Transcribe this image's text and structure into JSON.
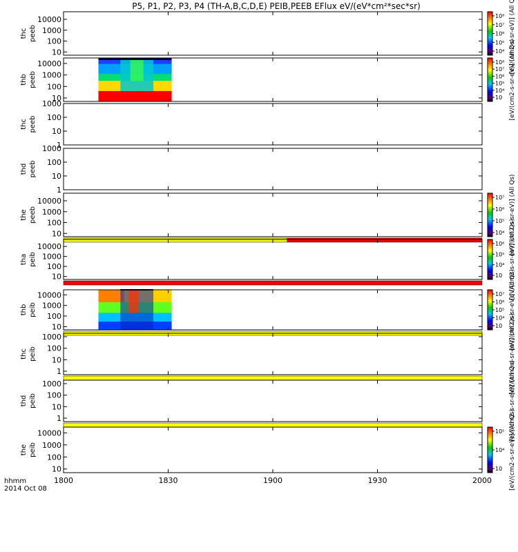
{
  "title": "P5, P1, P2, P3, P4 (TH-A,B,C,D,E) PEIB,PEEB EFlux eV/(eV*cm²*sec*sr)",
  "colors": {
    "red": "#ff0000",
    "yellow": "#ffff00",
    "frame": "#000000"
  },
  "chart_data": {
    "type": "heatmap",
    "x_axis": {
      "range": [
        "18:00",
        "20:00"
      ],
      "ticks": [
        "1800",
        "1830",
        "1900",
        "1930",
        "2000"
      ],
      "label_lines": [
        "hhmm",
        "2014 Oct 08"
      ]
    },
    "panels": [
      {
        "probe": "thc",
        "product": "peeb",
        "y_log": true,
        "y_range": [
          5,
          50000
        ],
        "y_ticks": [
          "10",
          "100",
          "1000",
          "10000"
        ],
        "colorbar": {
          "ticks": [
            "10⁴",
            "10⁵",
            "10⁶",
            "10⁷",
            "10⁸"
          ],
          "label": "[eV/(cm2-s-sr-eV)] (All Qs)"
        },
        "data_coverage": null,
        "bottom_strip": null
      },
      {
        "probe": "thb",
        "product": "peeb",
        "y_log": true,
        "y_range": [
          5,
          30000
        ],
        "y_ticks": [
          "10",
          "100",
          "1000",
          "10000"
        ],
        "colorbar": {
          "ticks": [
            "10⁳",
            "10⁴",
            "10⁵",
            "10⁶",
            "10⁷",
            "10⁸"
          ],
          "label": "[eV/(cm2-s-sr-eV)] (All Qs)"
        },
        "data_coverage": [
          "18:10",
          "18:31"
        ],
        "bottom_strip": null
      },
      {
        "probe": "thc",
        "product": "peeb",
        "y_log": true,
        "y_range": [
          1,
          1000
        ],
        "y_ticks": [
          "1",
          "10",
          "100",
          "1000"
        ],
        "colorbar": null,
        "data_coverage": null,
        "bottom_strip": null
      },
      {
        "probe": "thd",
        "product": "peeb",
        "y_log": true,
        "y_range": [
          1,
          1000
        ],
        "y_ticks": [
          "1",
          "10",
          "100",
          "1000"
        ],
        "colorbar": null,
        "data_coverage": null,
        "bottom_strip": null
      },
      {
        "probe": "the",
        "product": "peeb",
        "y_log": true,
        "y_range": [
          5,
          50000
        ],
        "y_ticks": [
          "10",
          "100",
          "1000",
          "10000"
        ],
        "colorbar": {
          "ticks": [
            "10⁴",
            "10⁵",
            "10⁶",
            "10⁷"
          ],
          "label": "[eV/(cm2-s-sr-eV)] (All Qs)"
        },
        "data_coverage": null,
        "bottom_strip": [
          {
            "from": "18:00",
            "to": "19:04",
            "color": "yellow"
          },
          {
            "from": "19:04",
            "to": "20:00",
            "color": "red"
          }
        ]
      },
      {
        "probe": "tha",
        "product": "peib",
        "y_log": true,
        "y_range": [
          5,
          50000
        ],
        "y_ticks": [
          "10",
          "100",
          "1000",
          "10000"
        ],
        "colorbar": {
          "ticks": [
            "10⁳",
            "10⁴",
            "10⁵",
            "10⁶"
          ],
          "label": "[eV/(cm2-s-sr-eV)] (All Qs)"
        },
        "data_coverage": null,
        "bottom_strip": [
          {
            "from": "18:00",
            "to": "20:00",
            "color": "red"
          }
        ]
      },
      {
        "probe": "thb",
        "product": "peib",
        "y_log": true,
        "y_range": [
          5,
          30000
        ],
        "y_ticks": [
          "10",
          "100",
          "1000",
          "10000"
        ],
        "colorbar": {
          "ticks": [
            "10⁳",
            "10⁴",
            "10⁵",
            "10⁶",
            "10⁷"
          ],
          "label": "[eV/(cm2-s-sr-eV)] (All Qs)"
        },
        "data_coverage": [
          "18:10",
          "18:31"
        ],
        "bottom_strip": [
          {
            "from": "18:00",
            "to": "20:00",
            "color": "yellow"
          }
        ]
      },
      {
        "probe": "thc",
        "product": "peib",
        "y_log": true,
        "y_range": [
          0.5,
          2000
        ],
        "y_ticks": [
          "1",
          "10",
          "100",
          "1000"
        ],
        "colorbar": {
          "ticks": [],
          "label": "[eV/(cm2-s-sr-eV)] (All Qs)"
        },
        "data_coverage": null,
        "bottom_strip": [
          {
            "from": "18:00",
            "to": "20:00",
            "color": "yellow"
          }
        ]
      },
      {
        "probe": "thd",
        "product": "peib",
        "y_log": true,
        "y_range": [
          0.5,
          2000
        ],
        "y_ticks": [
          "1",
          "10",
          "100",
          "1000"
        ],
        "colorbar": {
          "ticks": [],
          "label": "[eV/(cm2-s-sr-eV)] (All Qs)"
        },
        "data_coverage": null,
        "bottom_strip": [
          {
            "from": "18:00",
            "to": "20:00",
            "color": "yellow"
          }
        ]
      },
      {
        "probe": "the",
        "product": "peib",
        "y_log": true,
        "y_range": [
          5,
          30000
        ],
        "y_ticks": [
          "10",
          "100",
          "1000",
          "10000"
        ],
        "colorbar": {
          "ticks": [
            "10⁳",
            "10⁴",
            "10⁵"
          ],
          "label": "[eV/(cm2-s-sr-eV)] (All Qs)"
        },
        "data_coverage": null,
        "bottom_strip": null
      }
    ]
  }
}
